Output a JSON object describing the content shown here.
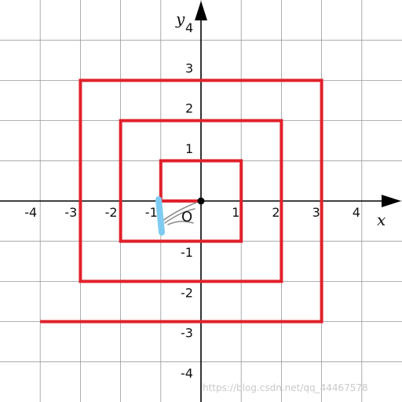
{
  "axes": {
    "x_label": "x",
    "y_label": "y",
    "origin_label": "O",
    "x_ticks": [
      "-4",
      "-3",
      "-2",
      "-1",
      "1",
      "2",
      "3",
      "4"
    ],
    "y_ticks": [
      "4",
      "3",
      "2",
      "1",
      "-1",
      "-2",
      "-3",
      "-4"
    ],
    "grid": true,
    "grid_color": "#999999",
    "axis_color": "#000000"
  },
  "spiral": {
    "color": "#e0212b",
    "points": [
      [
        0,
        0
      ],
      [
        -1,
        0
      ],
      [
        -1,
        1
      ],
      [
        1,
        1
      ],
      [
        1,
        -1
      ],
      [
        -2,
        -1
      ],
      [
        -2,
        2
      ],
      [
        2,
        2
      ],
      [
        2,
        -2
      ],
      [
        -3,
        -2
      ],
      [
        -3,
        3
      ],
      [
        3,
        3
      ],
      [
        3,
        -3
      ],
      [
        -4,
        -3
      ]
    ]
  },
  "highlight": {
    "color": "#7ecbf2"
  },
  "scribble": {
    "color": "#8a8a8a"
  },
  "watermark": "https://blog.csdn.net/qq_44467578"
}
